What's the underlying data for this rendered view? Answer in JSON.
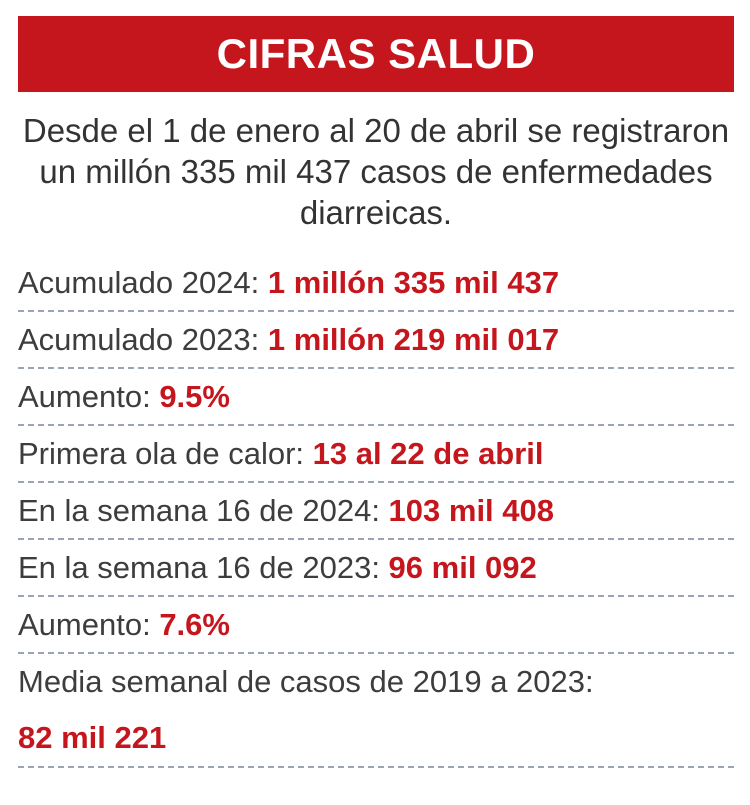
{
  "header": {
    "title": "CIFRAS SALUD"
  },
  "intro": {
    "text": "Desde el 1 de enero al 20 de abril se registraron un millón 335 mil 437 casos de enfermedades diarreicas."
  },
  "rows": [
    {
      "label": "Acumulado 2024: ",
      "value": "1 millón 335 mil 437"
    },
    {
      "label": "Acumulado 2023: ",
      "value": "1 millón 219 mil 017"
    },
    {
      "label": "Aumento: ",
      "value": "9.5%"
    },
    {
      "label": "Primera ola de calor:  ",
      "value": "13 al 22 de abril"
    },
    {
      "label": "En la semana 16 de 2024: ",
      "value": "103 mil 408"
    },
    {
      "label": "En la semana 16 de 2023: ",
      "value": "96 mil 092"
    },
    {
      "label": "Aumento: ",
      "value": "7.6%"
    },
    {
      "label": "Media semanal de casos de 2019 a 2023:",
      "value": "82 mil 221"
    }
  ],
  "colors": {
    "accent": "#c5161d",
    "text": "#3d3d3d",
    "divider": "#9aa4b4"
  }
}
